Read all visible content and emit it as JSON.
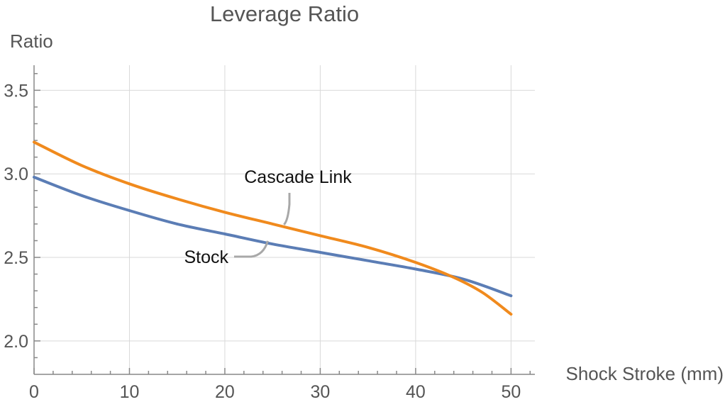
{
  "chart_data": {
    "type": "line",
    "title": "Leverage Ratio",
    "xlabel": "Shock Stroke (mm)",
    "ylabel": "Ratio",
    "xlim": [
      0,
      52.5
    ],
    "ylim": [
      1.8,
      3.65
    ],
    "xticks": [
      0,
      10,
      20,
      30,
      40,
      50
    ],
    "xtick_labels": [
      "0",
      "10",
      "20",
      "30",
      "40",
      "50"
    ],
    "yticks": [
      2.0,
      2.5,
      3.0,
      3.5
    ],
    "ytick_labels": [
      "2.0",
      "2.5",
      "3.0",
      "3.5"
    ],
    "grid": true,
    "series": [
      {
        "name": "Stock",
        "color": "#5b7db5",
        "x": [
          0,
          5,
          10,
          15,
          20,
          25,
          30,
          35,
          40,
          45,
          50
        ],
        "y": [
          2.98,
          2.87,
          2.78,
          2.7,
          2.64,
          2.58,
          2.53,
          2.48,
          2.43,
          2.37,
          2.27
        ]
      },
      {
        "name": "Cascade Link",
        "color": "#f08a1d",
        "x": [
          0,
          5,
          10,
          15,
          20,
          25,
          30,
          35,
          40,
          44,
          47,
          50
        ],
        "y": [
          3.19,
          3.05,
          2.94,
          2.85,
          2.77,
          2.7,
          2.63,
          2.56,
          2.47,
          2.38,
          2.29,
          2.16
        ]
      }
    ]
  }
}
